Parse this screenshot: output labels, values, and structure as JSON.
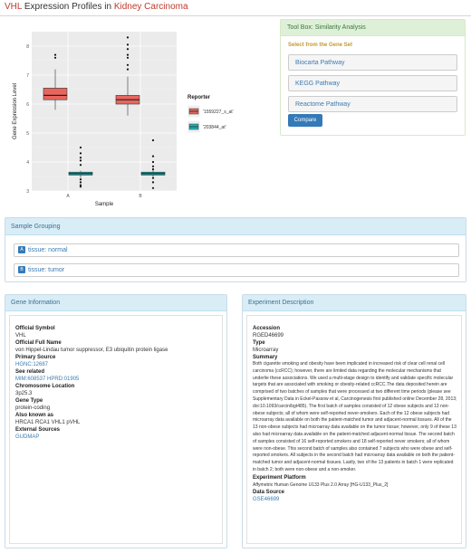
{
  "header": {
    "gene": "VHL",
    "middle": " Expression Profiles in ",
    "disease": "Kidney Carcinoma"
  },
  "chart_data": {
    "type": "boxplot",
    "xlabel": "Sample",
    "ylabel": "Gene Expression Level",
    "categories": [
      "A",
      "B"
    ],
    "ylim": [
      3,
      8.5
    ],
    "yticks": [
      3,
      4,
      5,
      6,
      7,
      8
    ],
    "legend_title": "Reporter",
    "legend_position": "right",
    "series": [
      {
        "name": "1559227_s_at",
        "color": "#e8655e",
        "boxes": [
          {
            "category": "A",
            "min": 5.8,
            "q1": 6.15,
            "median": 6.3,
            "q3": 6.55,
            "max": 7.2,
            "outliers": [
              7.6,
              7.7
            ]
          },
          {
            "category": "B",
            "min": 5.6,
            "q1": 6.0,
            "median": 6.15,
            "q3": 6.3,
            "max": 6.95,
            "outliers": [
              7.2,
              7.35,
              7.6,
              7.7,
              7.9,
              8.05,
              8.3
            ]
          }
        ]
      },
      {
        "name": "203844_at",
        "color": "#1fb3b5",
        "boxes": [
          {
            "category": "A",
            "min": 3.45,
            "q1": 3.55,
            "median": 3.6,
            "q3": 3.65,
            "max": 3.7,
            "outliers": [
              3.15,
              3.2,
              3.3,
              3.4,
              3.9,
              4.05,
              4.15,
              4.3,
              4.5
            ]
          },
          {
            "category": "B",
            "min": 3.5,
            "q1": 3.55,
            "median": 3.6,
            "q3": 3.65,
            "max": 3.75,
            "outliers": [
              3.1,
              3.3,
              3.45,
              3.75,
              3.85,
              4.0,
              4.2,
              4.75
            ]
          }
        ]
      }
    ]
  },
  "legend": {
    "title": "Reporter",
    "items": [
      {
        "label": "'1559227_s_at'"
      },
      {
        "label": "'203844_at'"
      }
    ]
  },
  "toolbox": {
    "title": "Tool Box: Similarity Analysis",
    "subtitle": "Select from the Gene Set",
    "pathways": [
      "Biocarta Pathway",
      "KEGG Pathway",
      "Reactome Pathway"
    ],
    "compare_label": "Compare"
  },
  "grouping": {
    "title": "Sample Grouping",
    "items": [
      {
        "badge": "A",
        "label": "tissue: normal"
      },
      {
        "badge": "B",
        "label": "tissue: tumor"
      }
    ]
  },
  "gene_info": {
    "title": "Gene Information",
    "official_symbol_label": "Official Symbol",
    "official_symbol": "VHL",
    "full_name_label": "Official Full Name",
    "full_name": "von Hippel-Lindau tumor suppressor, E3 ubiquitin protein ligase",
    "primary_source_label": "Primary Source",
    "primary_source": "HGNC:12687",
    "see_related_label": "See related",
    "see_related": "MIM:608537 HPRD:01905",
    "chromosome_label": "Chromosome Location",
    "chromosome": "3p25.3",
    "gene_type_label": "Gene Type",
    "gene_type": "protein-coding",
    "also_known_label": "Also known as",
    "also_known": "HRCA1 RCA1 VHL1 pVHL",
    "external_label": "External Sources",
    "external": "GUDMAP"
  },
  "experiment": {
    "title": "Experiment Description",
    "accession_label": "Accession",
    "accession": "RGED46699",
    "type_label": "Type",
    "type": "Microarray",
    "summary_label": "Summary",
    "summary": "Both cigarette smoking and obesity have been implicated in increased risk of clear cell renal cell carcinoma (ccRCC); however, there are limited data regarding the molecular mechanisms that underlie these associations. We used a multi-stage design to identify and validate specific molecular targets that are associated with smoking or obesity-related ccRCC.The data deposited herein are comprised of two batches of samples that were processed at two different time periods (please see Supplementary Data in Eckel-Passow et al, Carcinogenesis first published online December 28, 2013; doi:10.1093/carcin/bgt485). The first batch of samples consisted of 12 obese subjects and 13 non-obese subjects; all of whom were self-reported never-smokers. Each of the 12 obese subjects had microarray data available on both the patient-matched tumor and adjacent-normal tissues. All of the 13 non-obese subjects had microarray data available on the tumor tissue; however, only 9 of these 13 also had microarray data available on the patient-matched adjacent-normal tissue. The second batch of samples consisted of 16 self-reported smokers and 18 self-reported never smokers; all of whom were non-obese. This second batch of samples also contained 7 subjects who were obese and self-reported smokers. All subjects in the second batch had microarray data available on both the patient-matched tumor and adjacent-normal tissues. Lastly, two of the 13 patients in batch 1 were replicated in batch 2; both were non-obese and a non-smoker.",
    "platform_label": "Experiment Platform",
    "platform": "Affymetrix Human Genome U133 Plus 2.0 Array [HG-U133_Plus_2]",
    "data_source_label": "Data Source",
    "data_source": "GSE46699"
  }
}
